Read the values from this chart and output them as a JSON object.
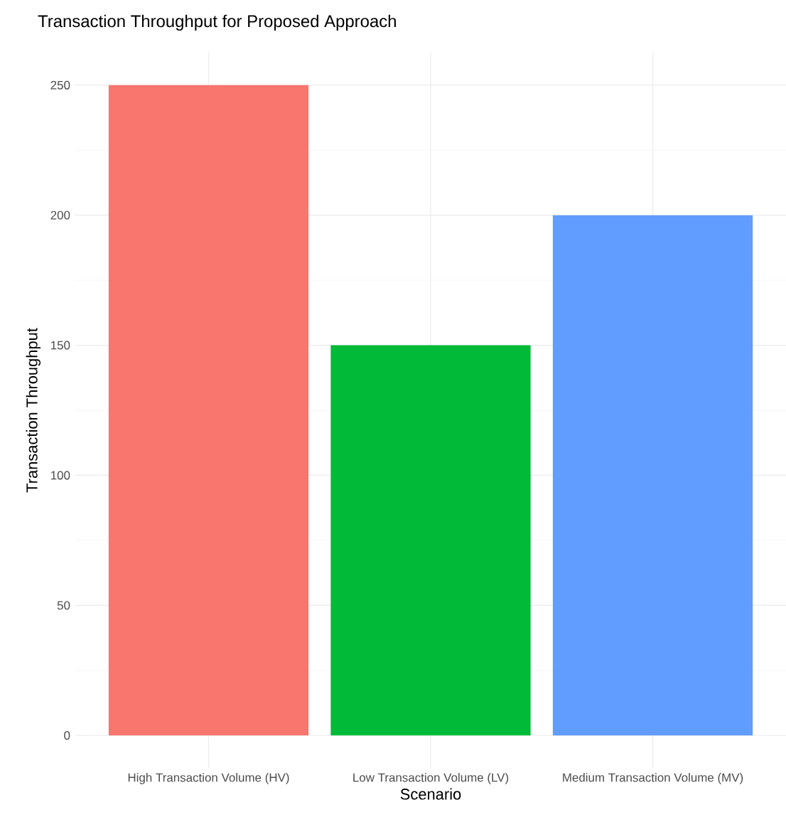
{
  "chart_data": {
    "type": "bar",
    "title": "Transaction Throughput for Proposed Approach",
    "xlabel": "Scenario",
    "ylabel": "Transaction Throughput",
    "categories": [
      "High Transaction Volume (HV)",
      "Low Transaction Volume (LV)",
      "Medium Transaction Volume (MV)"
    ],
    "values": [
      250,
      150,
      200
    ],
    "colors": [
      "#f8766d",
      "#00ba38",
      "#619cff"
    ],
    "ylim": [
      -12.5,
      262.5
    ],
    "yticks": [
      0,
      50,
      100,
      150,
      200,
      250
    ],
    "grid": true
  }
}
